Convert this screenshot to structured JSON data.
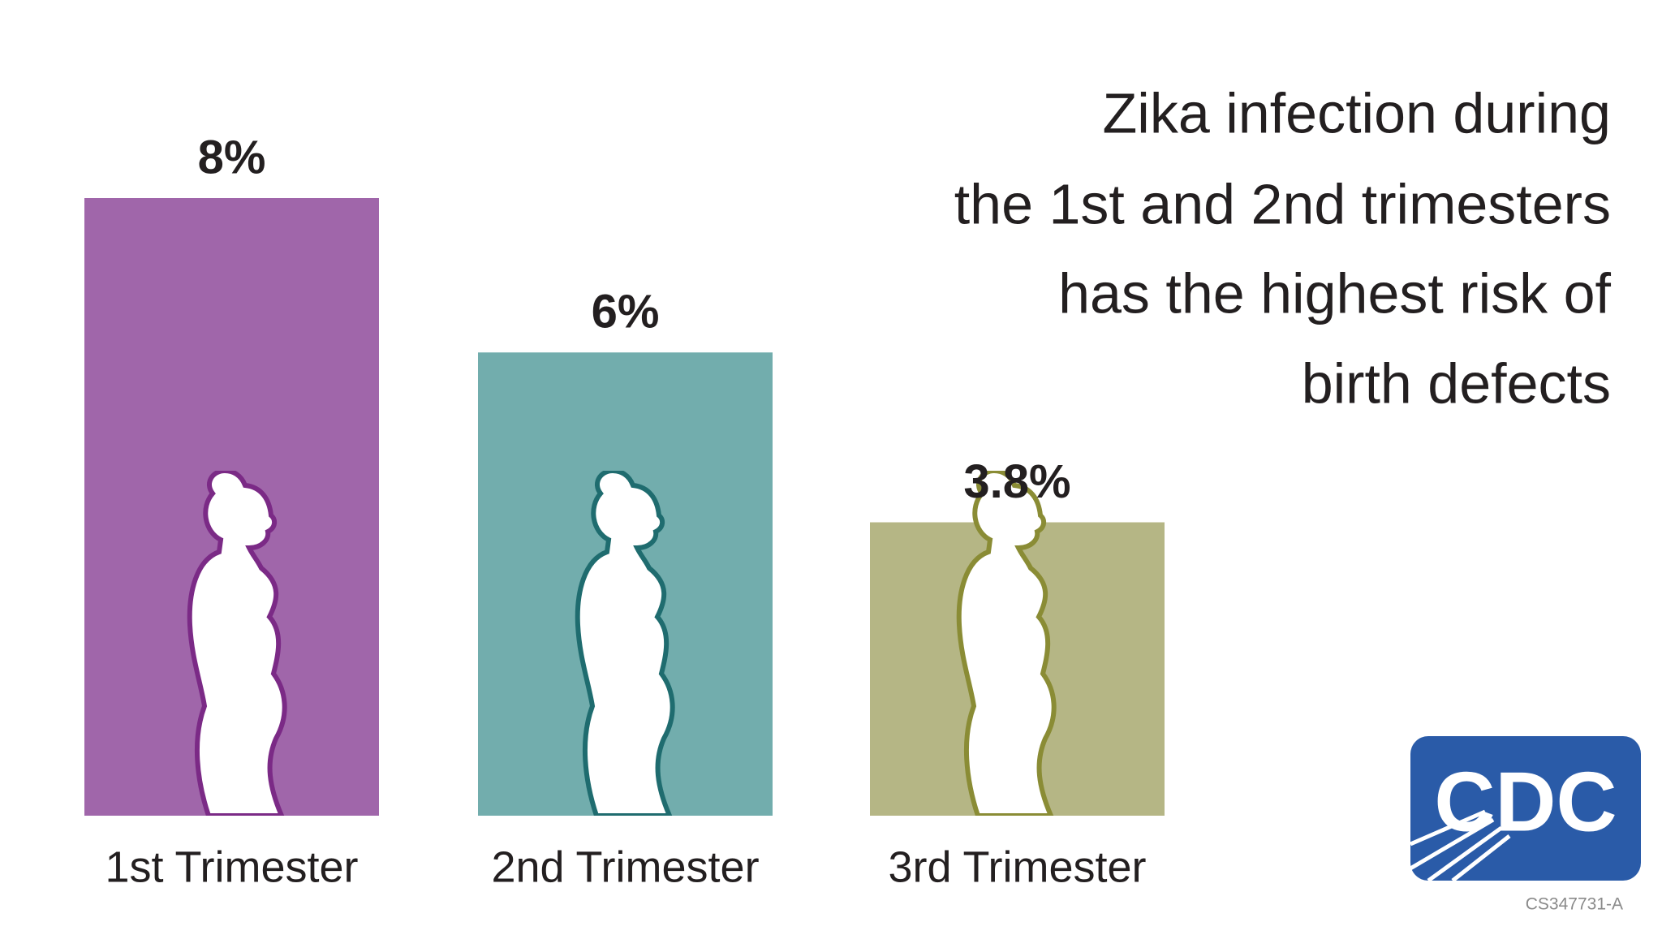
{
  "chart_data": {
    "type": "bar",
    "title": [
      "Zika infection during",
      "the 1st and 2nd trimesters",
      "has the highest risk of",
      "birth defects"
    ],
    "categories": [
      "1st Trimester",
      "2nd Trimester",
      "3rd Trimester"
    ],
    "values": [
      8,
      6,
      3.8
    ],
    "value_labels": [
      "8%",
      "6%",
      "3.8%"
    ],
    "colors": [
      "#a066aa",
      "#72adad",
      "#b5b685"
    ],
    "logo": "CDC",
    "footnote": "CS347731-A"
  }
}
